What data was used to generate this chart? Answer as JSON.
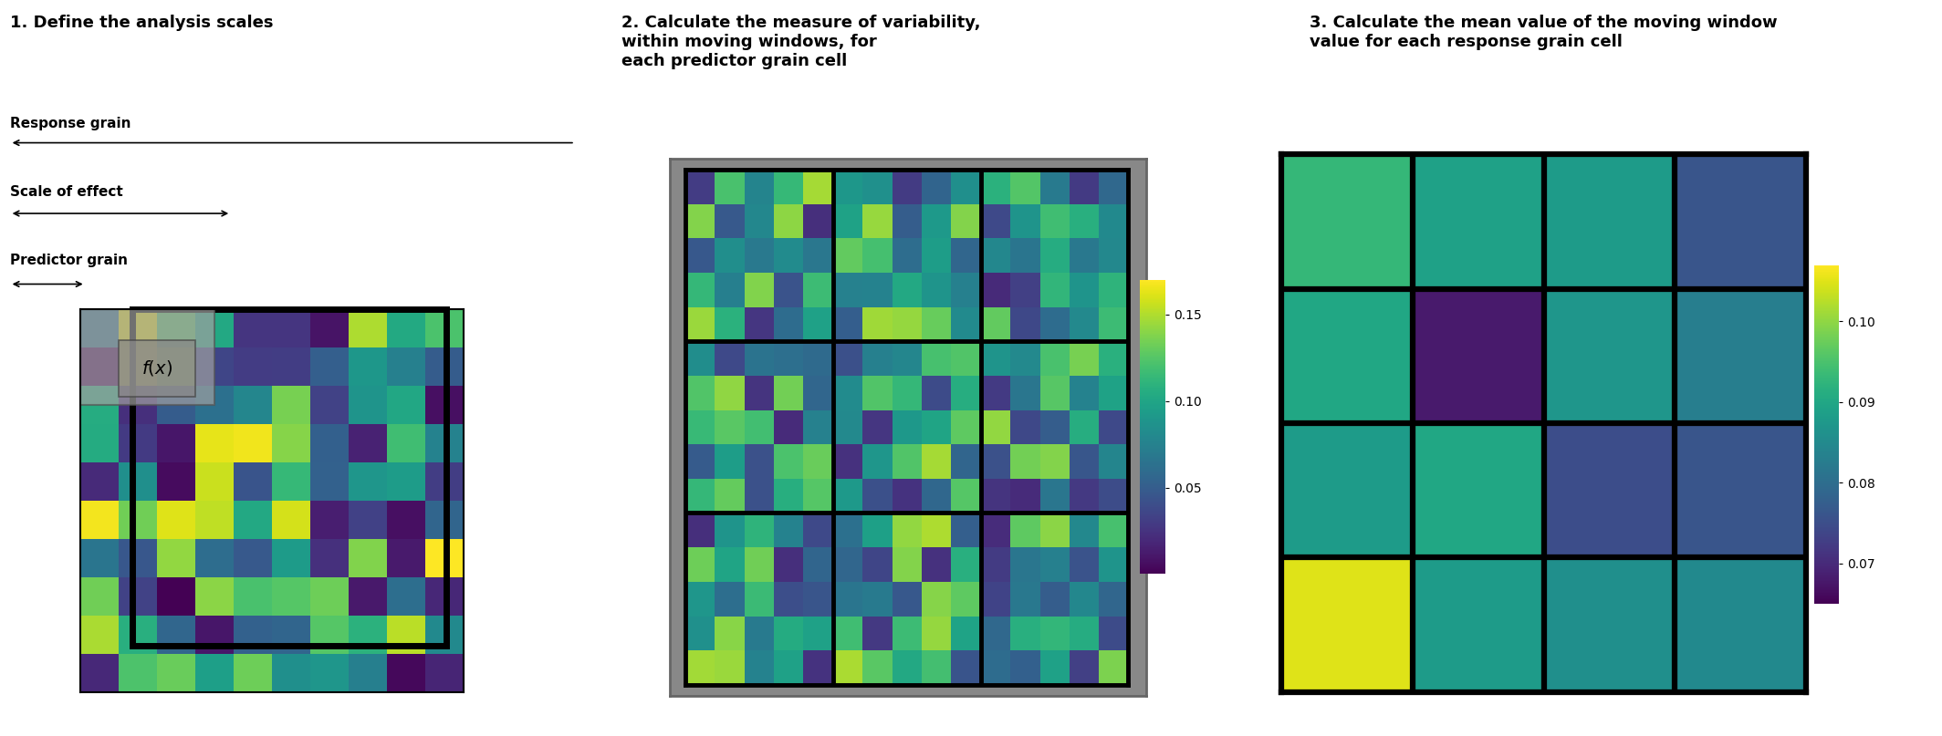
{
  "title1": "1. Define the analysis scales",
  "title2": "2. Calculate the measure of variability,\nwithin moving windows, for\neach predictor grain cell",
  "title3": "3. Calculate the mean value of the moving window\nvalue for each response grain cell",
  "label_response": "Response grain",
  "label_scale": "Scale of effect",
  "label_predictor": "Predictor grain",
  "cbar2_ticks": [
    0.05,
    0.1,
    0.15
  ],
  "cbar3_ticks": [
    0.07,
    0.08,
    0.09,
    0.1
  ],
  "grid1_n": 10,
  "bg_color": "#ffffff",
  "seed1": 42,
  "seed2": 7,
  "panel3_data": [
    [
      0.093,
      0.089,
      0.088,
      0.076
    ],
    [
      0.09,
      0.068,
      0.087,
      0.083
    ],
    [
      0.088,
      0.09,
      0.075,
      0.076
    ],
    [
      0.105,
      0.088,
      0.086,
      0.085
    ]
  ],
  "panel2_grid_n": 3,
  "panel2_sub_n": 5
}
